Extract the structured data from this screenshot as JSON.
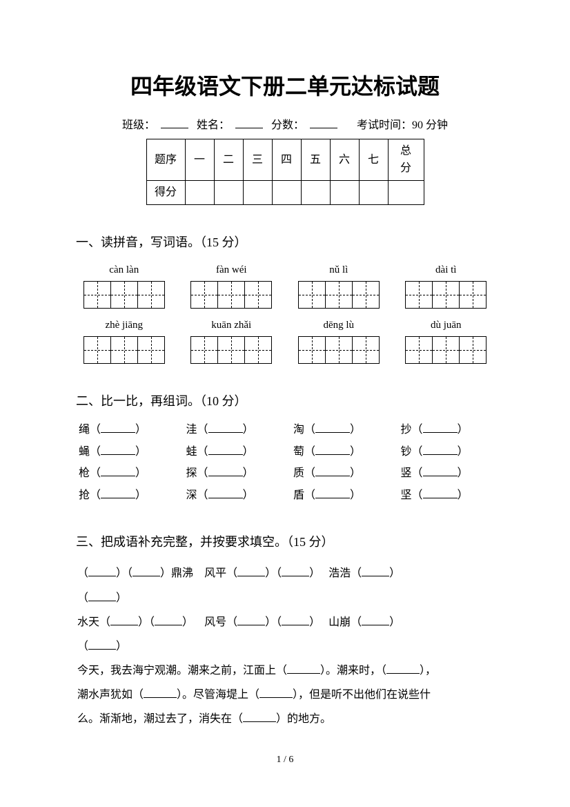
{
  "page": {
    "title": "四年级语文下册二单元达标试题",
    "info": {
      "class_label": "班级：",
      "name_label": "姓名：",
      "score_label": "分数：",
      "exam_time": "考试时间：90 分钟"
    },
    "score_table": {
      "row1_label": "题序",
      "row2_label": "得分",
      "cols": [
        "一",
        "二",
        "三",
        "四",
        "五",
        "六",
        "七"
      ],
      "total_label": "总分"
    }
  },
  "section1": {
    "title": "一、读拼音，写词语。（15 分）",
    "items": [
      {
        "pinyin": "càn làn",
        "cells": 3
      },
      {
        "pinyin": "fàn wéi",
        "cells": 3
      },
      {
        "pinyin": "nǔ lì",
        "cells": 3
      },
      {
        "pinyin": "dài tì",
        "cells": 3
      },
      {
        "pinyin": "zhè jiāng",
        "cells": 3
      },
      {
        "pinyin": "kuān zhǎi",
        "cells": 3
      },
      {
        "pinyin": "dēng lù",
        "cells": 3
      },
      {
        "pinyin": "dù juān",
        "cells": 3
      }
    ]
  },
  "section2": {
    "title": "二、比一比，再组词。（10 分）",
    "rows": [
      [
        "绳",
        "洼",
        "淘",
        "抄"
      ],
      [
        "蝇",
        "蛙",
        "萄",
        "钞"
      ],
      [
        "枪",
        "探",
        "质",
        "竖"
      ],
      [
        "抢",
        "深",
        "盾",
        "坚"
      ]
    ]
  },
  "section3": {
    "title": "三、把成语补充完整，并按要求填空。（15 分）",
    "line1_parts": {
      "a": "鼎沸",
      "b": "风平",
      "c": "浩浩"
    },
    "line2_parts": {
      "a": "水天",
      "b": "风号",
      "c": "山崩"
    },
    "paragraph": {
      "p1": "今天，我去海宁观潮。潮来之前，江面上（",
      "p2": "）。潮来时，（",
      "p3": "），",
      "p4": "潮水声犹如（",
      "p5": "）。尽管海堤上（",
      "p6": "），但是听不出他们在说些什",
      "p7": "么。渐渐地，潮过去了，消失在（",
      "p8": "）的地方。"
    }
  },
  "footer": {
    "page": "1 / 6"
  }
}
